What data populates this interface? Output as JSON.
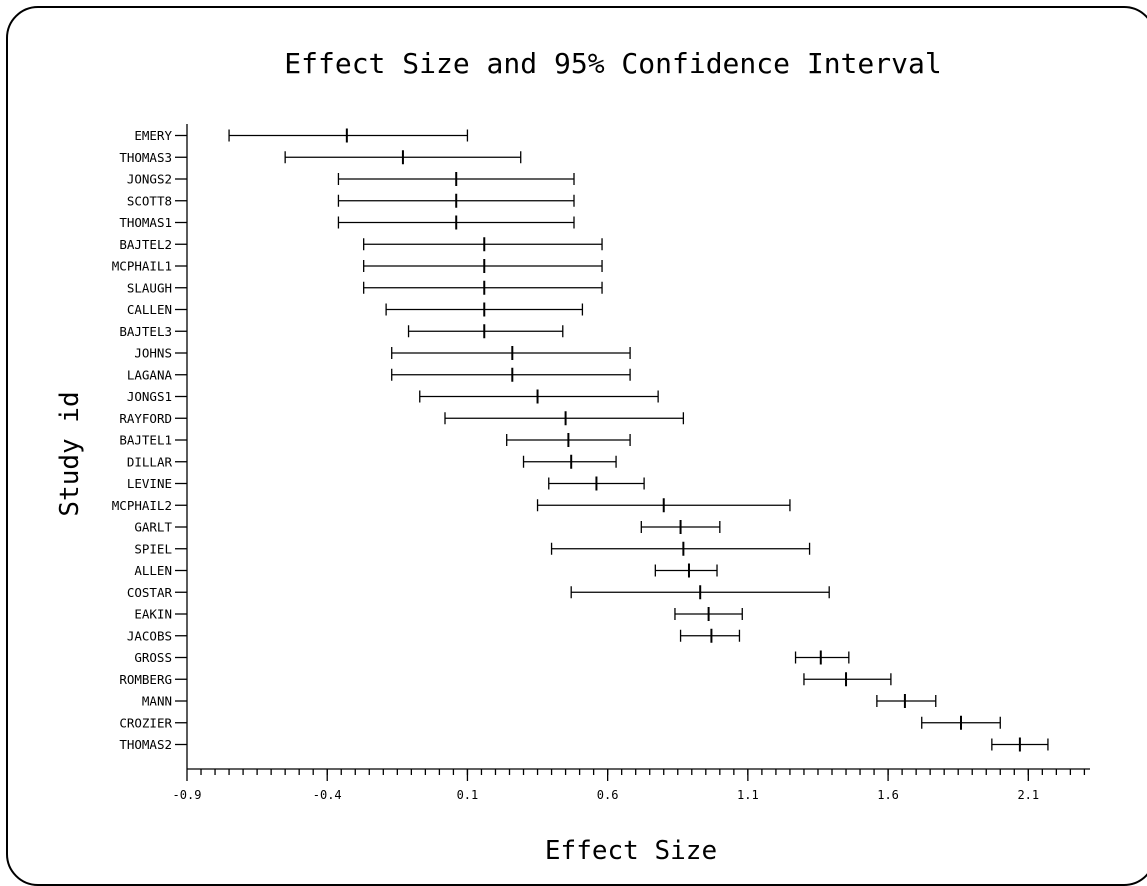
{
  "chart_data": {
    "type": "forest",
    "title": "Effect Size and 95% Confidence Interval",
    "xlabel": "Effect Size",
    "ylabel": "Study id",
    "xlim": [
      -0.9,
      2.32
    ],
    "xticks": [
      -0.9,
      -0.4,
      0.1,
      0.6,
      1.1,
      1.6,
      2.1
    ],
    "xtick_labels": [
      "-0.9",
      "-0.4",
      "0.1",
      "0.6",
      "1.1",
      "1.6",
      "2.1"
    ],
    "minor_tick_step": 0.05,
    "studies": [
      {
        "name": "EMERY",
        "effect": -0.33,
        "lower": -0.75,
        "upper": 0.1
      },
      {
        "name": "THOMAS3",
        "effect": -0.13,
        "lower": -0.55,
        "upper": 0.29
      },
      {
        "name": "JONGS2",
        "effect": 0.06,
        "lower": -0.36,
        "upper": 0.48
      },
      {
        "name": "SCOTT8",
        "effect": 0.06,
        "lower": -0.36,
        "upper": 0.48
      },
      {
        "name": "THOMAS1",
        "effect": 0.06,
        "lower": -0.36,
        "upper": 0.48
      },
      {
        "name": "BAJTEL2",
        "effect": 0.16,
        "lower": -0.27,
        "upper": 0.58
      },
      {
        "name": "MCPHAIL1",
        "effect": 0.16,
        "lower": -0.27,
        "upper": 0.58
      },
      {
        "name": "SLAUGH",
        "effect": 0.16,
        "lower": -0.27,
        "upper": 0.58
      },
      {
        "name": "CALLEN",
        "effect": 0.16,
        "lower": -0.19,
        "upper": 0.51
      },
      {
        "name": "BAJTEL3",
        "effect": 0.16,
        "lower": -0.11,
        "upper": 0.44
      },
      {
        "name": "JOHNS",
        "effect": 0.26,
        "lower": -0.17,
        "upper": 0.68
      },
      {
        "name": "LAGANA",
        "effect": 0.26,
        "lower": -0.17,
        "upper": 0.68
      },
      {
        "name": "JONGS1",
        "effect": 0.35,
        "lower": -0.07,
        "upper": 0.78
      },
      {
        "name": "RAYFORD",
        "effect": 0.45,
        "lower": 0.02,
        "upper": 0.87
      },
      {
        "name": "BAJTEL1",
        "effect": 0.46,
        "lower": 0.24,
        "upper": 0.68
      },
      {
        "name": "DILLAR",
        "effect": 0.47,
        "lower": 0.3,
        "upper": 0.63
      },
      {
        "name": "LEVINE",
        "effect": 0.56,
        "lower": 0.39,
        "upper": 0.73
      },
      {
        "name": "MCPHAIL2",
        "effect": 0.8,
        "lower": 0.35,
        "upper": 1.25
      },
      {
        "name": "GARLT",
        "effect": 0.86,
        "lower": 0.72,
        "upper": 1.0
      },
      {
        "name": "SPIEL",
        "effect": 0.87,
        "lower": 0.4,
        "upper": 1.32
      },
      {
        "name": "ALLEN",
        "effect": 0.89,
        "lower": 0.77,
        "upper": 0.99
      },
      {
        "name": "COSTAR",
        "effect": 0.93,
        "lower": 0.47,
        "upper": 1.39
      },
      {
        "name": "EAKIN",
        "effect": 0.96,
        "lower": 0.84,
        "upper": 1.08
      },
      {
        "name": "JACOBS",
        "effect": 0.97,
        "lower": 0.86,
        "upper": 1.07
      },
      {
        "name": "GROSS",
        "effect": 1.36,
        "lower": 1.27,
        "upper": 1.46
      },
      {
        "name": "ROMBERG",
        "effect": 1.45,
        "lower": 1.3,
        "upper": 1.61
      },
      {
        "name": "MANN",
        "effect": 1.66,
        "lower": 1.56,
        "upper": 1.77
      },
      {
        "name": "CROZIER",
        "effect": 1.86,
        "lower": 1.72,
        "upper": 2.0
      },
      {
        "name": "THOMAS2",
        "effect": 2.07,
        "lower": 1.97,
        "upper": 2.17
      }
    ]
  }
}
